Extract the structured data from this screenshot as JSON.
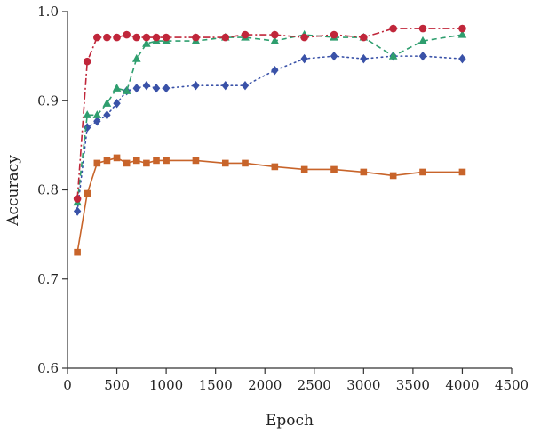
{
  "chart_data": {
    "type": "line",
    "title": "",
    "xlabel": "Epoch",
    "ylabel": "Accuracy",
    "xlim": [
      0,
      4500
    ],
    "ylim": [
      0.6,
      1.0
    ],
    "x_ticks": [
      0,
      500,
      1000,
      1500,
      2000,
      2500,
      3000,
      3500,
      4000,
      4500
    ],
    "y_ticks": [
      0.6,
      0.7,
      0.8,
      0.9,
      1.0
    ],
    "x_tick_labels": [
      "0",
      "500",
      "1000",
      "1500",
      "2000",
      "2500",
      "3000",
      "3500",
      "4000",
      "4500"
    ],
    "y_tick_labels": [
      "0.6",
      "0.7",
      "0.8",
      "0.9",
      "1.0"
    ],
    "grid": false,
    "legend": "none",
    "series": [
      {
        "color": "#c0263a",
        "marker": "circle",
        "line_style": "dash-dot",
        "points": [
          [
            100,
            0.79
          ],
          [
            200,
            0.944
          ],
          [
            300,
            0.971
          ],
          [
            400,
            0.971
          ],
          [
            500,
            0.971
          ],
          [
            600,
            0.974
          ],
          [
            700,
            0.971
          ],
          [
            800,
            0.971
          ],
          [
            900,
            0.971
          ],
          [
            1000,
            0.971
          ],
          [
            1300,
            0.971
          ],
          [
            1600,
            0.971
          ],
          [
            1800,
            0.974
          ],
          [
            2100,
            0.974
          ],
          [
            2400,
            0.971
          ],
          [
            2700,
            0.974
          ],
          [
            3000,
            0.971
          ],
          [
            3300,
            0.981
          ],
          [
            3600,
            0.981
          ],
          [
            4000,
            0.981
          ]
        ]
      },
      {
        "color": "#2e9e6e",
        "marker": "triangle",
        "line_style": "dashed",
        "points": [
          [
            100,
            0.786
          ],
          [
            200,
            0.884
          ],
          [
            300,
            0.884
          ],
          [
            400,
            0.897
          ],
          [
            500,
            0.914
          ],
          [
            600,
            0.911
          ],
          [
            700,
            0.947
          ],
          [
            800,
            0.964
          ],
          [
            900,
            0.967
          ],
          [
            1000,
            0.967
          ],
          [
            1300,
            0.967
          ],
          [
            1600,
            0.971
          ],
          [
            1800,
            0.971
          ],
          [
            2100,
            0.967
          ],
          [
            2400,
            0.974
          ],
          [
            2700,
            0.971
          ],
          [
            3000,
            0.971
          ],
          [
            3300,
            0.95
          ],
          [
            3600,
            0.967
          ],
          [
            4000,
            0.974
          ]
        ]
      },
      {
        "color": "#3a52a8",
        "marker": "diamond",
        "line_style": "dotted",
        "points": [
          [
            100,
            0.776
          ],
          [
            200,
            0.87
          ],
          [
            300,
            0.877
          ],
          [
            400,
            0.884
          ],
          [
            500,
            0.897
          ],
          [
            600,
            0.911
          ],
          [
            700,
            0.914
          ],
          [
            800,
            0.917
          ],
          [
            900,
            0.914
          ],
          [
            1000,
            0.914
          ],
          [
            1300,
            0.917
          ],
          [
            1600,
            0.917
          ],
          [
            1800,
            0.917
          ],
          [
            2100,
            0.934
          ],
          [
            2400,
            0.947
          ],
          [
            2700,
            0.95
          ],
          [
            3000,
            0.947
          ],
          [
            3300,
            0.95
          ],
          [
            3600,
            0.95
          ],
          [
            4000,
            0.947
          ]
        ]
      },
      {
        "color": "#c8642a",
        "marker": "square",
        "line_style": "solid",
        "points": [
          [
            100,
            0.73
          ],
          [
            200,
            0.796
          ],
          [
            300,
            0.83
          ],
          [
            400,
            0.833
          ],
          [
            500,
            0.836
          ],
          [
            600,
            0.83
          ],
          [
            700,
            0.833
          ],
          [
            800,
            0.83
          ],
          [
            900,
            0.833
          ],
          [
            1000,
            0.833
          ],
          [
            1300,
            0.833
          ],
          [
            1600,
            0.83
          ],
          [
            1800,
            0.83
          ],
          [
            2100,
            0.826
          ],
          [
            2400,
            0.823
          ],
          [
            2700,
            0.823
          ],
          [
            3000,
            0.82
          ],
          [
            3300,
            0.816
          ],
          [
            3600,
            0.82
          ],
          [
            4000,
            0.82
          ]
        ]
      }
    ]
  }
}
